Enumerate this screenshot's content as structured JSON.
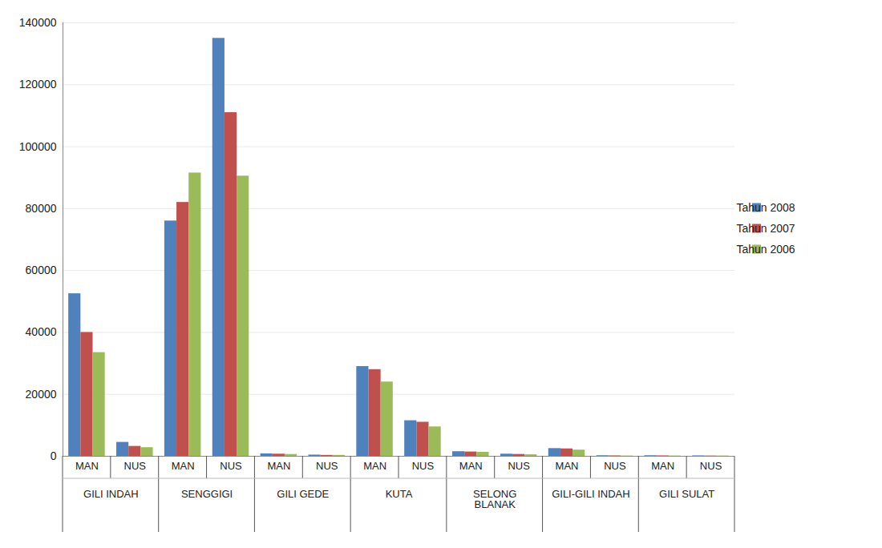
{
  "chart_data": {
    "type": "bar",
    "groups": [
      {
        "name": "GILI INDAH",
        "categories": [
          "MAN",
          "NUS"
        ]
      },
      {
        "name": "SENGGIGI",
        "categories": [
          "MAN",
          "NUS"
        ]
      },
      {
        "name": "GILI GEDE",
        "categories": [
          "MAN",
          "NUS"
        ]
      },
      {
        "name": "KUTA",
        "categories": [
          "MAN",
          "NUS"
        ]
      },
      {
        "name": "SELONG BLANAK",
        "categories": [
          "MAN",
          "NUS"
        ]
      },
      {
        "name": "GILI-GILI INDAH",
        "categories": [
          "MAN",
          "NUS"
        ]
      },
      {
        "name": "GILI SULAT",
        "categories": [
          "MAN",
          "NUS"
        ]
      }
    ],
    "series": [
      {
        "name": "Tahun 2008",
        "color": "#4f81bd",
        "values": [
          52500,
          4500,
          76000,
          135000,
          800,
          400,
          29000,
          11500,
          1500,
          700,
          2500,
          200,
          200,
          150
        ]
      },
      {
        "name": "Tahun 2007",
        "color": "#c0504d",
        "values": [
          40000,
          3200,
          82000,
          111000,
          700,
          300,
          28000,
          11000,
          1400,
          600,
          2400,
          150,
          150,
          100
        ]
      },
      {
        "name": "Tahun 2006",
        "color": "#9bbb59",
        "values": [
          33500,
          2800,
          91500,
          90500,
          600,
          300,
          24000,
          9500,
          1300,
          500,
          2000,
          100,
          100,
          100
        ]
      }
    ],
    "ylim": [
      0,
      140000
    ],
    "yticks": [
      0,
      20000,
      40000,
      60000,
      80000,
      100000,
      120000,
      140000
    ],
    "grid": true,
    "legend": "right"
  }
}
